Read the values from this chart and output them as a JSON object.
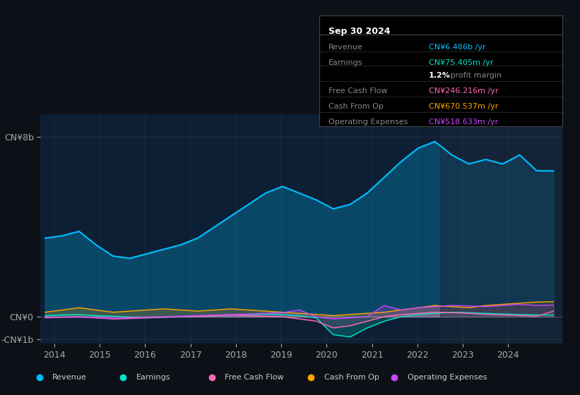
{
  "bg_color": "#0d1117",
  "plot_bg_color": "#0d1f35",
  "title": "Sep 30 2024",
  "ylabel_top": "CN¥8b",
  "ylabel_bottom": "-CN¥1b",
  "ylabel_mid": "CN¥0",
  "xlim": [
    2013.7,
    2025.2
  ],
  "ylim": [
    -1200000000.0,
    9000000000.0
  ],
  "yticks": [
    -1000000000.0,
    0,
    8000000000.0
  ],
  "ytick_labels": [
    "-CN¥1b",
    "CN¥0",
    "CN¥8b"
  ],
  "xtick_labels": [
    "2014",
    "2015",
    "2016",
    "2017",
    "2018",
    "2019",
    "2020",
    "2021",
    "2022",
    "2023",
    "2024"
  ],
  "xtick_positions": [
    2014,
    2015,
    2016,
    2017,
    2018,
    2019,
    2020,
    2021,
    2022,
    2023,
    2024
  ],
  "colors": {
    "revenue": "#00bfff",
    "earnings": "#00e5cc",
    "free_cash_flow": "#ff69b4",
    "cash_from_op": "#ffa500",
    "operating_expenses": "#cc44ff"
  },
  "revenue": [
    3500000000.0,
    3600000000.0,
    3800000000.0,
    3200000000.0,
    2700000000.0,
    2600000000.0,
    2800000000.0,
    3000000000.0,
    3200000000.0,
    3500000000.0,
    4000000000.0,
    4500000000.0,
    5000000000.0,
    5500000000.0,
    5800000000.0,
    5500000000.0,
    5200000000.0,
    4800000000.0,
    5000000000.0,
    5500000000.0,
    6200000000.0,
    6900000000.0,
    7500000000.0,
    7800000000.0,
    7200000000.0,
    6800000000.0,
    7000000000.0,
    6800000000.0,
    7200000000.0,
    6500000000.0,
    6486000000.0
  ],
  "earnings": [
    50000000.0,
    80000000.0,
    100000000.0,
    50000000.0,
    20000000.0,
    -20000000.0,
    -50000000.0,
    -20000000.0,
    0.0,
    20000000.0,
    50000000.0,
    80000000.0,
    100000000.0,
    120000000.0,
    100000000.0,
    50000000.0,
    -50000000.0,
    -800000000.0,
    -900000000.0,
    -500000000.0,
    -200000000.0,
    0.0,
    100000000.0,
    150000000.0,
    200000000.0,
    180000000.0,
    150000000.0,
    120000000.0,
    100000000.0,
    80000000.0,
    75000000.0
  ],
  "free_cash_flow": [
    -50000000.0,
    -20000000.0,
    0.0,
    -50000000.0,
    -100000000.0,
    -80000000.0,
    -50000000.0,
    -20000000.0,
    0.0,
    20000000.0,
    50000000.0,
    80000000.0,
    50000000.0,
    20000000.0,
    0.0,
    -100000000.0,
    -200000000.0,
    -500000000.0,
    -400000000.0,
    -200000000.0,
    0.0,
    100000000.0,
    150000000.0,
    200000000.0,
    180000000.0,
    150000000.0,
    100000000.0,
    80000000.0,
    50000000.0,
    20000000.0,
    246000000.0
  ],
  "cash_from_op": [
    200000000.0,
    300000000.0,
    400000000.0,
    300000000.0,
    200000000.0,
    250000000.0,
    300000000.0,
    350000000.0,
    300000000.0,
    250000000.0,
    300000000.0,
    350000000.0,
    300000000.0,
    250000000.0,
    200000000.0,
    150000000.0,
    100000000.0,
    50000000.0,
    100000000.0,
    150000000.0,
    200000000.0,
    300000000.0,
    400000000.0,
    500000000.0,
    450000000.0,
    400000000.0,
    500000000.0,
    550000000.0,
    600000000.0,
    650000000.0,
    670000000.0
  ],
  "operating_expenses": [
    -20000000.0,
    -20000000.0,
    -20000000.0,
    -50000000.0,
    -80000000.0,
    -50000000.0,
    -20000000.0,
    0.0,
    20000000.0,
    50000000.0,
    80000000.0,
    100000000.0,
    120000000.0,
    150000000.0,
    180000000.0,
    300000000.0,
    0.0,
    -100000000.0,
    -50000000.0,
    0.0,
    500000000.0,
    300000000.0,
    400000000.0,
    450000000.0,
    500000000.0,
    480000000.0,
    450000000.0,
    500000000.0,
    550000000.0,
    500000000.0,
    518000000.0
  ],
  "info_box": {
    "title": "Sep 30 2024",
    "rows": [
      {
        "label": "Revenue",
        "value": "CN¥6.486b /yr",
        "color": "#00bfff"
      },
      {
        "label": "Earnings",
        "value": "CN¥75.405m /yr",
        "color": "#00e5cc"
      },
      {
        "label": "",
        "value": "1.2% profit margin",
        "color": "#ffffff"
      },
      {
        "label": "Free Cash Flow",
        "value": "CN¥246.216m /yr",
        "color": "#ff69b4"
      },
      {
        "label": "Cash From Op",
        "value": "CN¥670.537m /yr",
        "color": "#ffa500"
      },
      {
        "label": "Operating Expenses",
        "value": "CN¥518.633m /yr",
        "color": "#cc44ff"
      }
    ]
  },
  "legend": [
    {
      "label": "Revenue",
      "color": "#00bfff"
    },
    {
      "label": "Earnings",
      "color": "#00e5cc"
    },
    {
      "label": "Free Cash Flow",
      "color": "#ff69b4"
    },
    {
      "label": "Cash From Op",
      "color": "#ffa500"
    },
    {
      "label": "Operating Expenses",
      "color": "#cc44ff"
    }
  ]
}
